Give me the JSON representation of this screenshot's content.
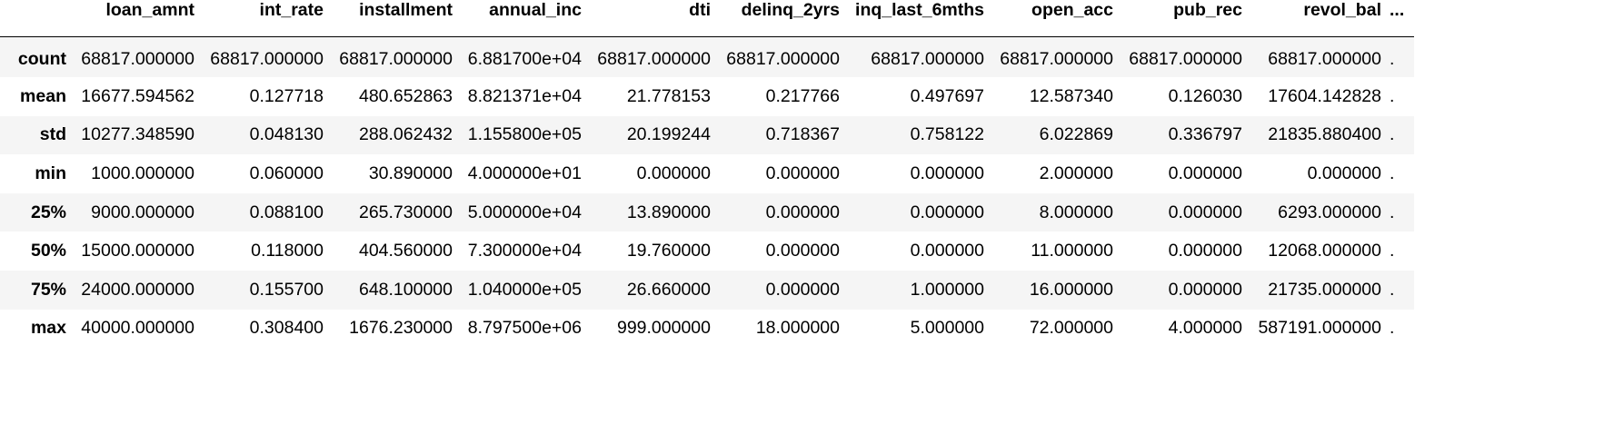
{
  "table": {
    "columns": [
      "loan_amnt",
      "int_rate",
      "installment",
      "annual_inc",
      "dti",
      "delinq_2yrs",
      "inq_last_6mths",
      "open_acc",
      "pub_rec",
      "revol_bal"
    ],
    "ellipsis": "...",
    "rows": [
      {
        "label": "count",
        "values": [
          "68817.000000",
          "68817.000000",
          "68817.000000",
          "6.881700e+04",
          "68817.000000",
          "68817.000000",
          "68817.000000",
          "68817.000000",
          "68817.000000",
          "68817.000000"
        ],
        "ellipsis": "."
      },
      {
        "label": "mean",
        "values": [
          "16677.594562",
          "0.127718",
          "480.652863",
          "8.821371e+04",
          "21.778153",
          "0.217766",
          "0.497697",
          "12.587340",
          "0.126030",
          "17604.142828"
        ],
        "ellipsis": "."
      },
      {
        "label": "std",
        "values": [
          "10277.348590",
          "0.048130",
          "288.062432",
          "1.155800e+05",
          "20.199244",
          "0.718367",
          "0.758122",
          "6.022869",
          "0.336797",
          "21835.880400"
        ],
        "ellipsis": "."
      },
      {
        "label": "min",
        "values": [
          "1000.000000",
          "0.060000",
          "30.890000",
          "4.000000e+01",
          "0.000000",
          "0.000000",
          "0.000000",
          "2.000000",
          "0.000000",
          "0.000000"
        ],
        "ellipsis": "."
      },
      {
        "label": "25%",
        "values": [
          "9000.000000",
          "0.088100",
          "265.730000",
          "5.000000e+04",
          "13.890000",
          "0.000000",
          "0.000000",
          "8.000000",
          "0.000000",
          "6293.000000"
        ],
        "ellipsis": "."
      },
      {
        "label": "50%",
        "values": [
          "15000.000000",
          "0.118000",
          "404.560000",
          "7.300000e+04",
          "19.760000",
          "0.000000",
          "0.000000",
          "11.000000",
          "0.000000",
          "12068.000000"
        ],
        "ellipsis": "."
      },
      {
        "label": "75%",
        "values": [
          "24000.000000",
          "0.155700",
          "648.100000",
          "1.040000e+05",
          "26.660000",
          "0.000000",
          "1.000000",
          "16.000000",
          "0.000000",
          "21735.000000"
        ],
        "ellipsis": "."
      },
      {
        "label": "max",
        "values": [
          "40000.000000",
          "0.308400",
          "1676.230000",
          "8.797500e+06",
          "999.000000",
          "18.000000",
          "5.000000",
          "72.000000",
          "4.000000",
          "587191.000000"
        ],
        "ellipsis": "."
      }
    ]
  }
}
